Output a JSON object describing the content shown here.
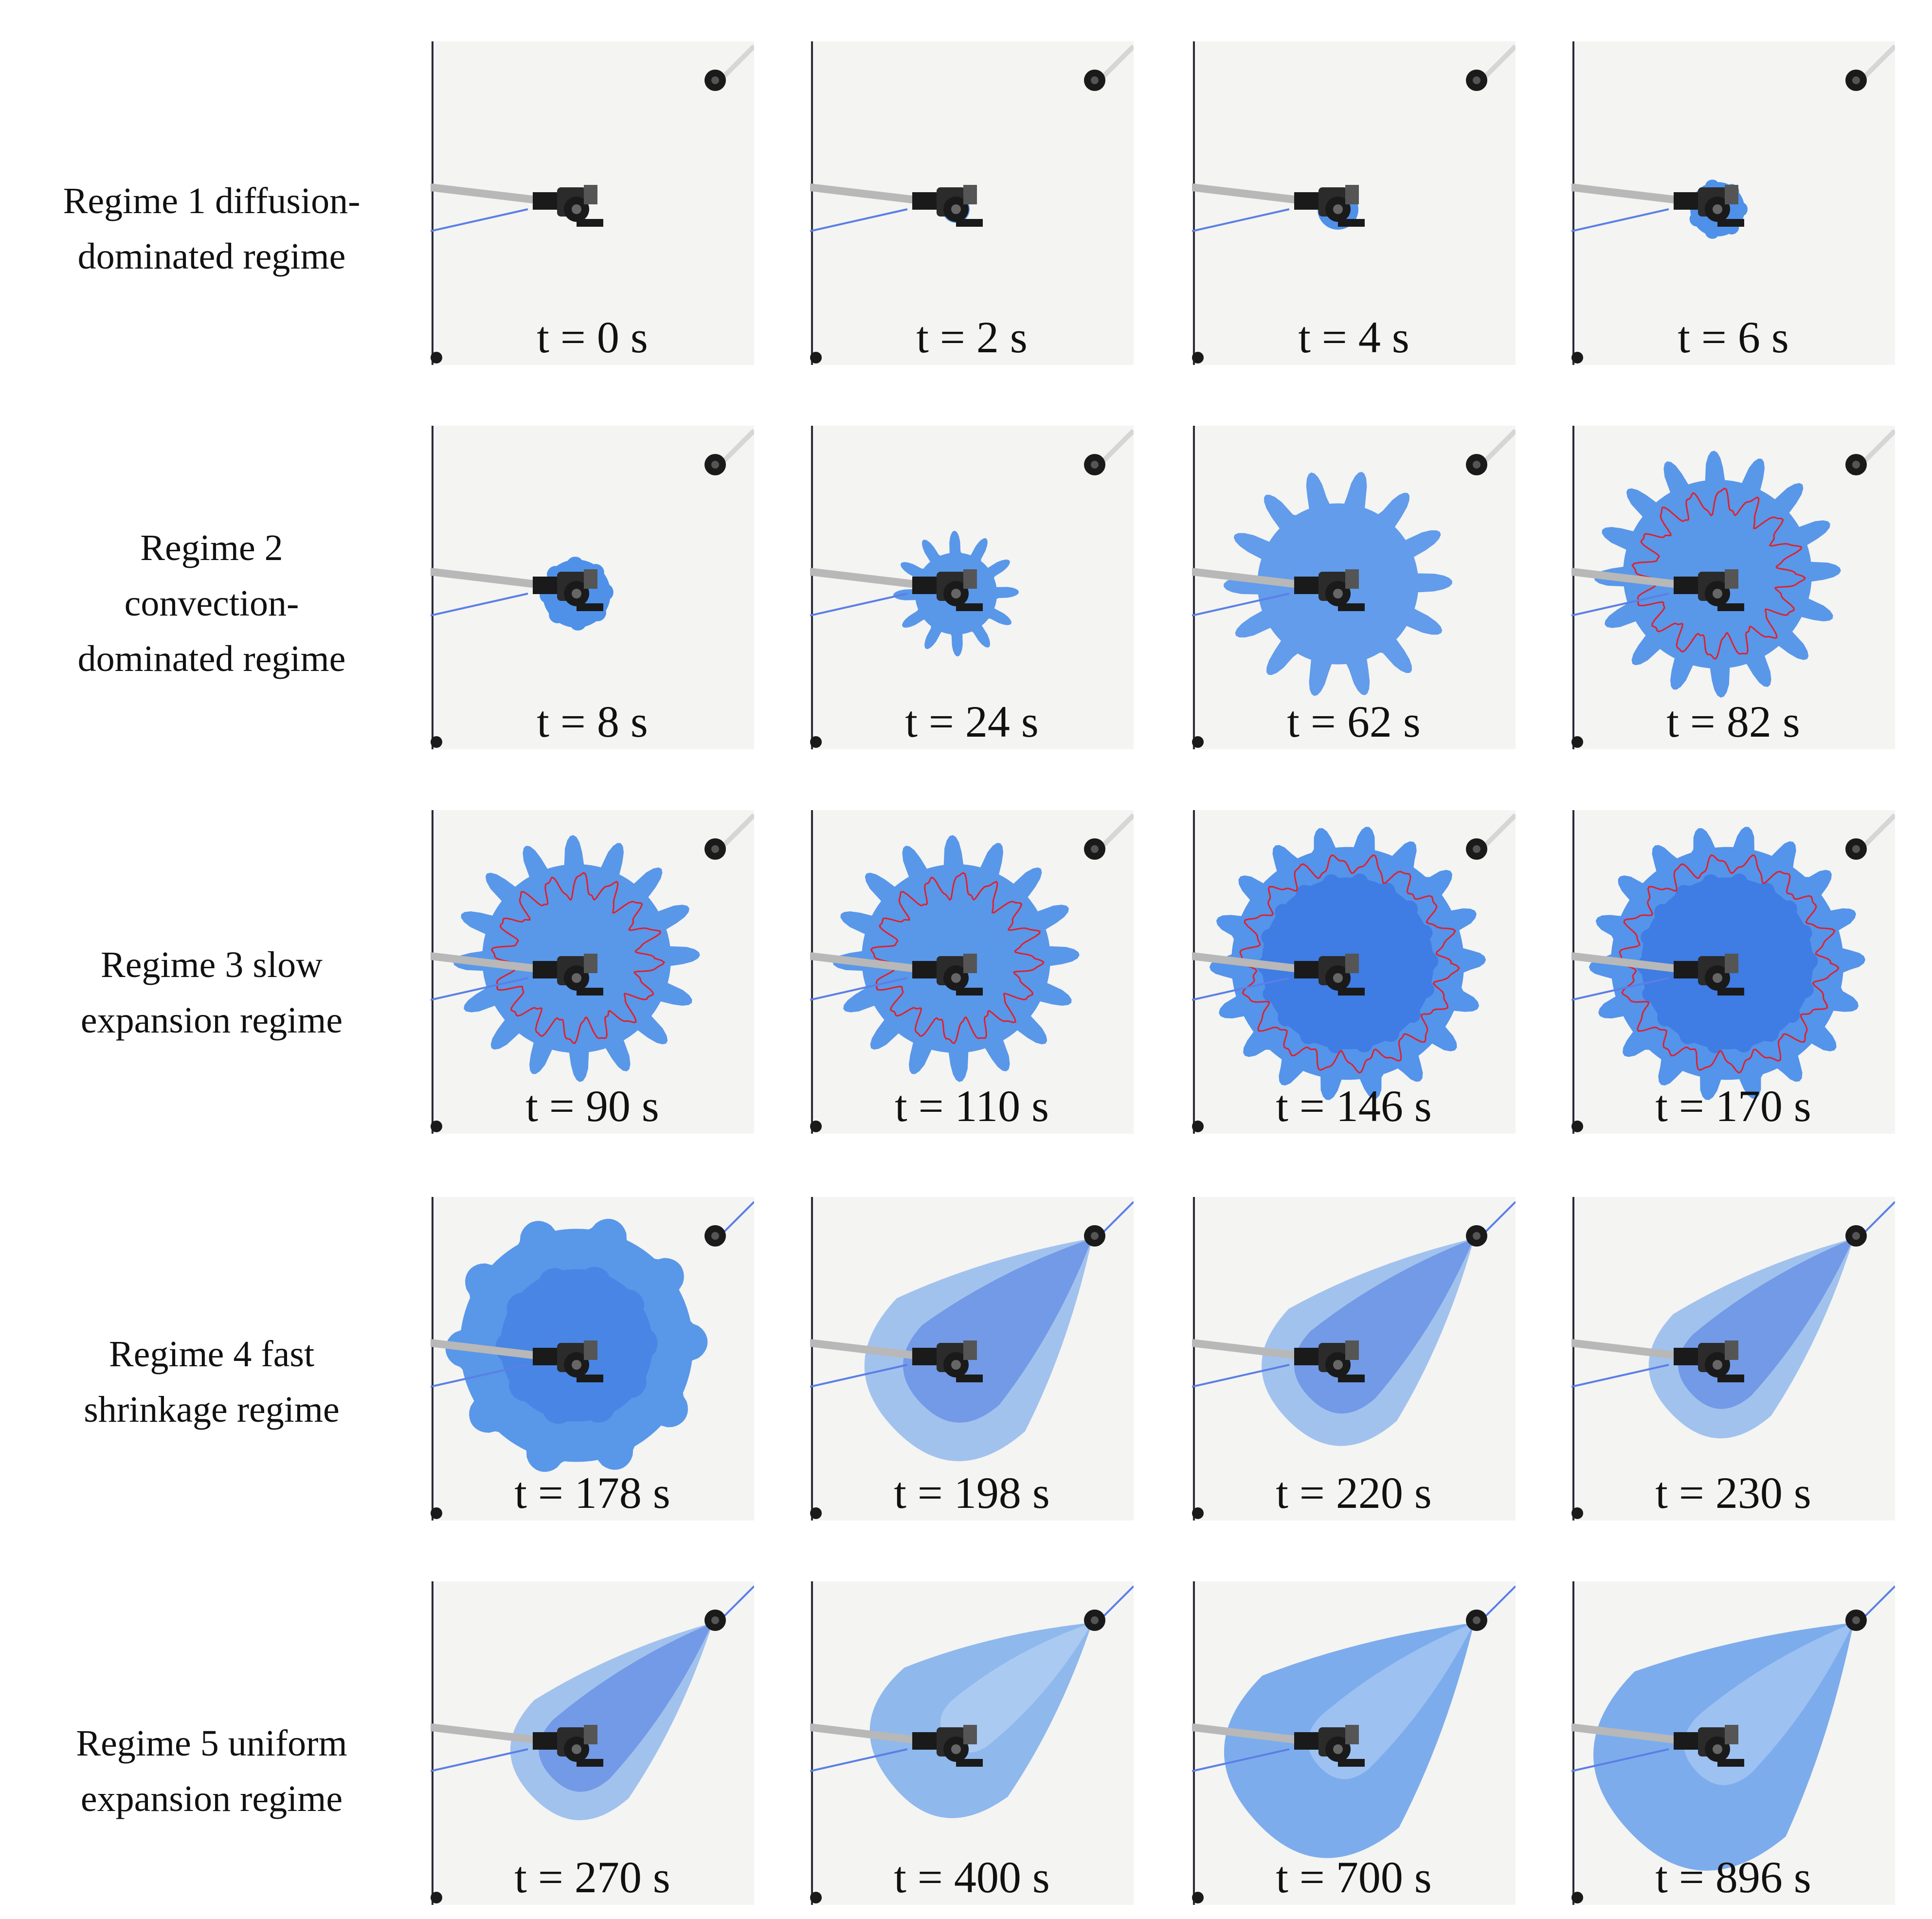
{
  "rows": [
    {
      "label_lines": [
        "Regime 1 diffusion-",
        "dominated regime"
      ],
      "panels": [
        {
          "time": "t = 0 s",
          "stage": 0
        },
        {
          "time": "t = 2 s",
          "stage": 1
        },
        {
          "time": "t = 4 s",
          "stage": 2
        },
        {
          "time": "t = 6 s",
          "stage": 3
        }
      ]
    },
    {
      "label_lines": [
        "Regime 2",
        "convection-",
        "dominated regime"
      ],
      "panels": [
        {
          "time": "t = 8 s",
          "stage": 4
        },
        {
          "time": "t = 24 s",
          "stage": 5
        },
        {
          "time": "t = 62 s",
          "stage": 6
        },
        {
          "time": "t = 82 s",
          "stage": 7
        }
      ]
    },
    {
      "label_lines": [
        "Regime 3 slow",
        "expansion regime"
      ],
      "panels": [
        {
          "time": "t = 90 s",
          "stage": 8
        },
        {
          "time": "t = 110 s",
          "stage": 9
        },
        {
          "time": "t = 146 s",
          "stage": 10
        },
        {
          "time": "t = 170 s",
          "stage": 11
        }
      ]
    },
    {
      "label_lines": [
        "Regime 4 fast",
        "shrinkage regime"
      ],
      "panels": [
        {
          "time": "t = 178 s",
          "stage": 12
        },
        {
          "time": "t = 198 s",
          "stage": 13
        },
        {
          "time": "t = 220 s",
          "stage": 14
        },
        {
          "time": "t = 230 s",
          "stage": 15
        }
      ]
    },
    {
      "label_lines": [
        "Regime 5 uniform",
        "expansion regime"
      ],
      "panels": [
        {
          "time": "t = 270 s",
          "stage": 16
        },
        {
          "time": "t = 400 s",
          "stage": 17
        },
        {
          "time": "t = 700 s",
          "stage": 18
        },
        {
          "time": "t = 896 s",
          "stage": 19
        }
      ]
    }
  ],
  "colors": {
    "panel_background": "#f4f4f2",
    "dye": "#3d86e8",
    "dye_dark": "#1a4fd6",
    "interface_line": "#e0202a",
    "hardware": "#1a1a1a"
  }
}
